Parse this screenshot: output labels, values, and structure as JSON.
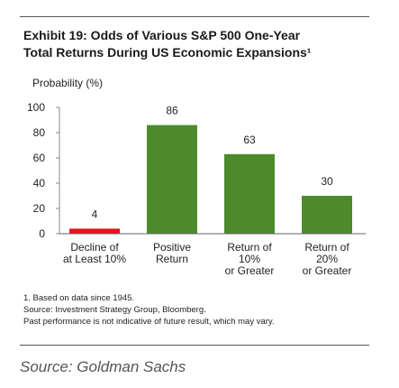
{
  "chart_data": {
    "type": "bar",
    "title": [
      "Exhibit 19: Odds of Various S&P 500 One-Year",
      "Total Returns During US Economic Expansions¹"
    ],
    "y_label": "Probability (%)",
    "categories": [
      [
        "Decline of",
        "at Least 10%"
      ],
      [
        "Positive",
        "Return"
      ],
      [
        "Return of",
        "10%",
        "or Greater"
      ],
      [
        "Return of",
        "20%",
        "or Greater"
      ]
    ],
    "values": [
      4,
      86,
      63,
      30
    ],
    "colors": [
      "#e3141d",
      "#4d8a2c",
      "#4d8a2c",
      "#4d8a2c"
    ],
    "ylim": [
      0,
      100
    ],
    "yticks": [
      0,
      20,
      40,
      60,
      80,
      100
    ],
    "notes": [
      "1. Based on data since 1945.",
      "Source: Investment Strategy Group, Bloomberg.",
      "Past performance is not indicative of future result, which may vary."
    ],
    "caption": "Source: Goldman Sachs"
  }
}
